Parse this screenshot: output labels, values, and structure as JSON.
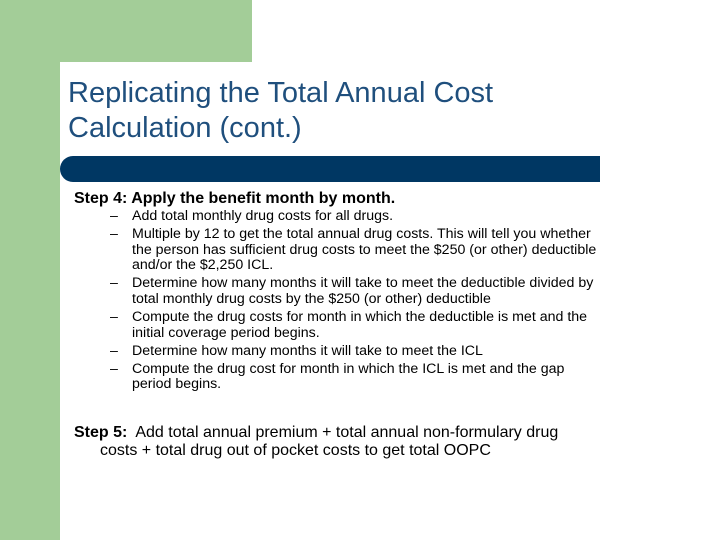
{
  "title": {
    "line1": "Replicating the Total Annual Cost",
    "line2": "Calculation (cont.)"
  },
  "colors": {
    "green": "#a3cd98",
    "title_blue": "#1f4f7d",
    "bar_navy": "#003763"
  },
  "step4": {
    "heading": "Step 4:  Apply the benefit month by month.",
    "items": [
      {
        "dash": "–",
        "lines": [
          "Add total monthly drug costs for all drugs."
        ]
      },
      {
        "dash": "–",
        "lines": [
          "Multiple by 12 to get the total annual drug costs.  This will tell you whether",
          "the person has sufficient drug costs to meet the $250 (or other) deductible",
          "and/or the $2,250 ICL."
        ]
      },
      {
        "dash": "–",
        "lines": [
          "Determine how many months it will take to meet the deductible divided by",
          "total monthly drug costs by the $250 (or other) deductible"
        ]
      },
      {
        "dash": "–",
        "lines": [
          "Compute the drug costs for month in which the deductible is met and the",
          "initial coverage period begins."
        ]
      },
      {
        "dash": "–",
        "lines": [
          "Determine how many months it will take to meet the ICL"
        ]
      },
      {
        "dash": "–",
        "lines": [
          "Compute the drug cost for month in which the ICL is met and the gap",
          "period begins."
        ]
      }
    ]
  },
  "step5": {
    "label": "Step 5:",
    "text_line1": "  Add total annual premium + total annual non-formulary drug",
    "text_line2": "costs + total drug out of pocket costs to get total OOPC"
  }
}
